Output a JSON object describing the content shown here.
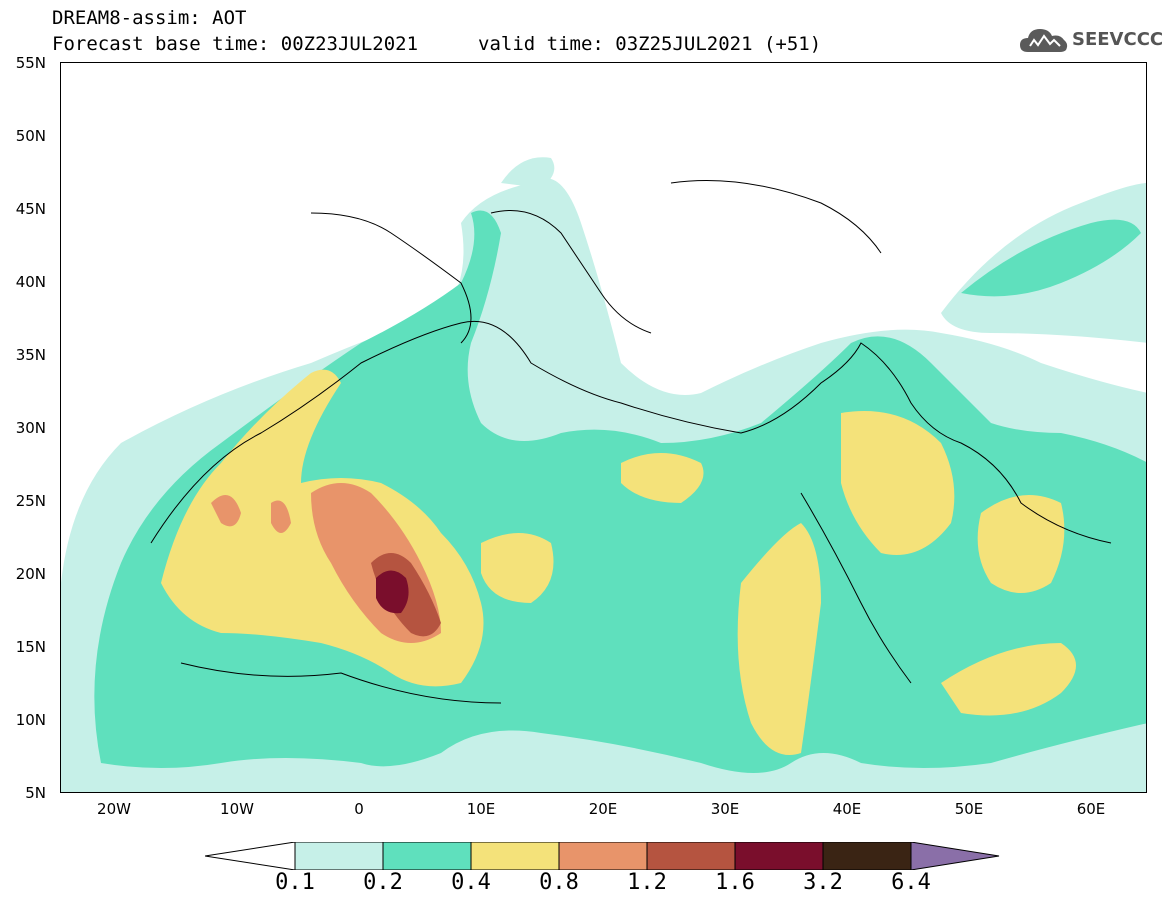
{
  "header": {
    "title": "DREAM8-assim: AOT",
    "base_time": "Forecast base time: 00Z23JUL2021",
    "valid_time": "valid time: 03Z25JUL2021 (+51)"
  },
  "logo": {
    "text": "SEEVCCC",
    "icon": "cloud-icon"
  },
  "map": {
    "lat_labels": [
      "55N",
      "50N",
      "45N",
      "40N",
      "35N",
      "30N",
      "25N",
      "20N",
      "15N",
      "10N",
      "5N"
    ],
    "lon_labels": [
      "20W",
      "10W",
      "0",
      "10E",
      "20E",
      "30E",
      "40E",
      "50E",
      "60E"
    ]
  },
  "colorbar": {
    "labels": [
      "0.1",
      "0.2",
      "0.4",
      "0.8",
      "1.2",
      "1.6",
      "3.2",
      "6.4"
    ],
    "colors": [
      "#c6f0e8",
      "#5fe0bd",
      "#f4e27a",
      "#e8946a",
      "#b55440",
      "#7a0e2c",
      "#3a2414",
      "#8a6fa8"
    ]
  }
}
